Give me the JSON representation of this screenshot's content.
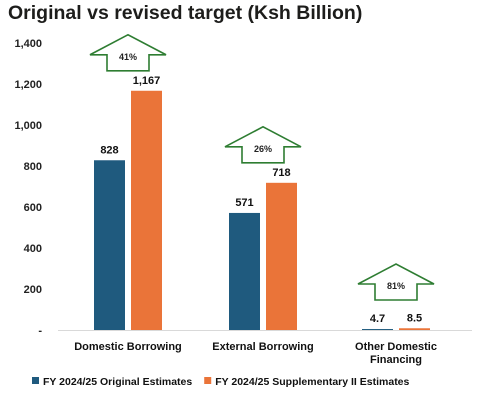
{
  "title": "Original vs revised target (Ksh Billion)",
  "chart_data": {
    "type": "bar",
    "title": "Original vs revised target (Ksh Billion)",
    "categories": [
      [
        "Domestic Borrowing"
      ],
      [
        "External Borrowing"
      ],
      [
        "Other Domestic",
        "Financing"
      ]
    ],
    "series": [
      {
        "name": "FY 2024/25 Original Estimates",
        "color": "#1f5a7e",
        "values": [
          828,
          571,
          4.7
        ],
        "labels": [
          "828",
          "571",
          "4.7"
        ]
      },
      {
        "name": "FY 2024/25 Supplementary II Estimates",
        "color": "#ea7439",
        "values": [
          1167,
          718,
          8.5
        ],
        "labels": [
          "1,167",
          "718",
          "8.5"
        ]
      }
    ],
    "changes": [
      "41%",
      "26%",
      "81%"
    ],
    "yticks": [
      "-",
      "200",
      "400",
      "600",
      "800",
      "1,000",
      "1,200",
      "1,400"
    ],
    "ylim": [
      0,
      1400
    ],
    "grid": false,
    "legend": "bottom",
    "colors": {
      "change_arrow_outline": "#2e7d32"
    }
  }
}
